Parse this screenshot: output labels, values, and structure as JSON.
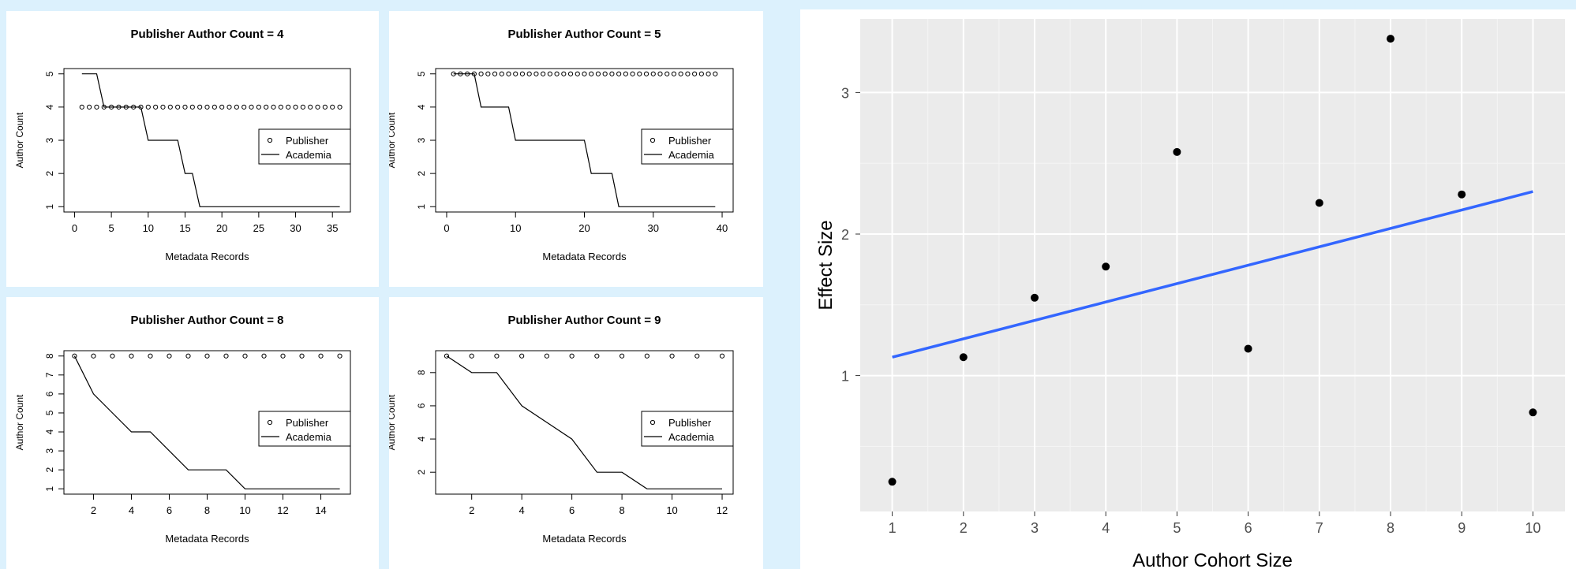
{
  "chart_data": [
    {
      "type": "line",
      "title": "Publisher Author Count = 4",
      "xlabel": "Metadata Records",
      "ylabel": "Author Count",
      "xlim": [
        0,
        36
      ],
      "ylim": [
        1,
        5
      ],
      "xticks": [
        "0",
        "5",
        "10",
        "15",
        "20",
        "25",
        "30",
        "35"
      ],
      "yticks": [
        "1",
        "2",
        "3",
        "4",
        "5"
      ],
      "legend": {
        "placement": "right",
        "entries": [
          "Publisher",
          "Academia"
        ]
      },
      "series": [
        {
          "name": "Publisher",
          "style": "points",
          "x": [
            1,
            2,
            3,
            4,
            5,
            6,
            7,
            8,
            9,
            10,
            11,
            12,
            13,
            14,
            15,
            16,
            17,
            18,
            19,
            20,
            21,
            22,
            23,
            24,
            25,
            26,
            27,
            28,
            29,
            30,
            31,
            32,
            33,
            34,
            35,
            36
          ],
          "y": [
            4,
            4,
            4,
            4,
            4,
            4,
            4,
            4,
            4,
            4,
            4,
            4,
            4,
            4,
            4,
            4,
            4,
            4,
            4,
            4,
            4,
            4,
            4,
            4,
            4,
            4,
            4,
            4,
            4,
            4,
            4,
            4,
            4,
            4,
            4,
            4
          ]
        },
        {
          "name": "Academia",
          "style": "line",
          "x": [
            1,
            3,
            4,
            9,
            10,
            14,
            15,
            16,
            17,
            36
          ],
          "y": [
            5,
            5,
            4,
            4,
            3,
            3,
            2,
            2,
            1,
            1
          ]
        }
      ]
    },
    {
      "type": "line",
      "title": "Publisher Author Count = 5",
      "xlabel": "Metadata Records",
      "ylabel": "Author Count",
      "xlim": [
        0,
        40
      ],
      "ylim": [
        1,
        5
      ],
      "xticks": [
        "0",
        "10",
        "20",
        "30",
        "40"
      ],
      "yticks": [
        "1",
        "2",
        "3",
        "4",
        "5"
      ],
      "legend": {
        "placement": "right",
        "entries": [
          "Publisher",
          "Academia"
        ]
      },
      "series": [
        {
          "name": "Publisher",
          "style": "points",
          "x": [
            1,
            2,
            3,
            4,
            5,
            6,
            7,
            8,
            9,
            10,
            11,
            12,
            13,
            14,
            15,
            16,
            17,
            18,
            19,
            20,
            21,
            22,
            23,
            24,
            25,
            26,
            27,
            28,
            29,
            30,
            31,
            32,
            33,
            34,
            35,
            36,
            37,
            38,
            39
          ],
          "y": [
            5,
            5,
            5,
            5,
            5,
            5,
            5,
            5,
            5,
            5,
            5,
            5,
            5,
            5,
            5,
            5,
            5,
            5,
            5,
            5,
            5,
            5,
            5,
            5,
            5,
            5,
            5,
            5,
            5,
            5,
            5,
            5,
            5,
            5,
            5,
            5,
            5,
            5,
            5
          ]
        },
        {
          "name": "Academia",
          "style": "line",
          "x": [
            1,
            4,
            5,
            9,
            10,
            20,
            21,
            24,
            25,
            39
          ],
          "y": [
            5,
            5,
            4,
            4,
            3,
            3,
            2,
            2,
            1,
            1
          ]
        }
      ]
    },
    {
      "type": "line",
      "title": "Publisher Author Count = 8",
      "xlabel": "Metadata Records",
      "ylabel": "Author Count",
      "xlim": [
        1,
        15
      ],
      "ylim": [
        1,
        8
      ],
      "xticks": [
        "2",
        "4",
        "6",
        "8",
        "10",
        "12",
        "14"
      ],
      "yticks": [
        "1",
        "2",
        "3",
        "4",
        "5",
        "6",
        "7",
        "8"
      ],
      "legend": {
        "placement": "right",
        "entries": [
          "Publisher",
          "Academia"
        ]
      },
      "series": [
        {
          "name": "Publisher",
          "style": "points",
          "x": [
            1,
            2,
            3,
            4,
            5,
            6,
            7,
            8,
            9,
            10,
            11,
            12,
            13,
            14,
            15
          ],
          "y": [
            8,
            8,
            8,
            8,
            8,
            8,
            8,
            8,
            8,
            8,
            8,
            8,
            8,
            8,
            8
          ]
        },
        {
          "name": "Academia",
          "style": "line",
          "x": [
            1,
            2,
            3,
            4,
            5,
            6,
            7,
            8,
            9,
            10,
            11,
            12,
            13,
            14,
            15
          ],
          "y": [
            8,
            6,
            5,
            4,
            4,
            3,
            2,
            2,
            2,
            1,
            1,
            1,
            1,
            1,
            1
          ]
        }
      ]
    },
    {
      "type": "line",
      "title": "Publisher Author Count = 9",
      "xlabel": "Metadata Records",
      "ylabel": "Author Count",
      "xlim": [
        1,
        12
      ],
      "ylim": [
        1,
        9
      ],
      "xticks": [
        "2",
        "4",
        "6",
        "8",
        "10",
        "12"
      ],
      "yticks": [
        "2",
        "4",
        "6",
        "8"
      ],
      "legend": {
        "placement": "right",
        "entries": [
          "Publisher",
          "Academia"
        ]
      },
      "series": [
        {
          "name": "Publisher",
          "style": "points",
          "x": [
            1,
            2,
            3,
            4,
            5,
            6,
            7,
            8,
            9,
            10,
            11,
            12
          ],
          "y": [
            9,
            9,
            9,
            9,
            9,
            9,
            9,
            9,
            9,
            9,
            9,
            9
          ]
        },
        {
          "name": "Academia",
          "style": "line",
          "x": [
            1,
            2,
            3,
            4,
            5,
            6,
            7,
            8,
            9,
            10,
            11,
            12
          ],
          "y": [
            9,
            8,
            8,
            6,
            5,
            4,
            2,
            2,
            1,
            1,
            1,
            1
          ]
        }
      ]
    },
    {
      "type": "scatter",
      "xlabel": "Author Cohort Size",
      "ylabel": "Effect Size",
      "xlim": [
        1,
        10
      ],
      "ylim": [
        0.1,
        3.5
      ],
      "grid": true,
      "xticks": [
        "1",
        "2",
        "3",
        "4",
        "5",
        "6",
        "7",
        "8",
        "9",
        "10"
      ],
      "yticks": [
        "1",
        "2",
        "3"
      ],
      "series": [
        {
          "style": "points",
          "x": [
            1,
            2,
            3,
            4,
            5,
            6,
            7,
            8,
            9,
            10
          ],
          "y": [
            0.25,
            1.13,
            1.55,
            1.77,
            2.58,
            1.19,
            2.22,
            3.38,
            2.28,
            0.74
          ]
        },
        {
          "style": "fit-line",
          "color": "#3366ff",
          "x": [
            1,
            10
          ],
          "y": [
            1.13,
            2.3
          ]
        }
      ]
    }
  ]
}
